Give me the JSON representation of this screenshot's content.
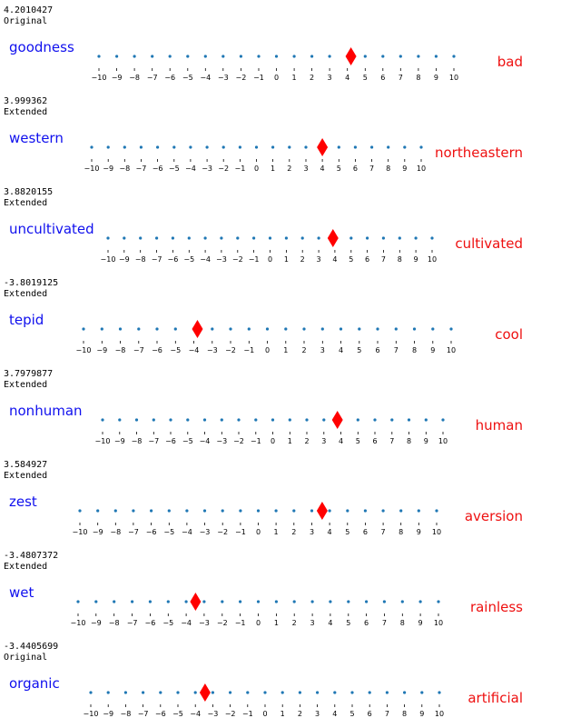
{
  "chart_data": [
    {
      "type": "scatter",
      "value_text": "4.2010427",
      "label": "Original",
      "left_word": "goodness",
      "right_word": "bad",
      "xlim": [
        -10,
        10
      ],
      "value": 4.2010427
    },
    {
      "type": "scatter",
      "value_text": "3.999362",
      "label": "Extended",
      "left_word": "western",
      "right_word": "northeastern",
      "xlim": [
        -10,
        10
      ],
      "value": 3.999362
    },
    {
      "type": "scatter",
      "value_text": "3.8820155",
      "label": "Extended",
      "left_word": "uncultivated",
      "right_word": "cultivated",
      "xlim": [
        -10,
        10
      ],
      "value": 3.8820155
    },
    {
      "type": "scatter",
      "value_text": "-3.8019125",
      "label": "Extended",
      "left_word": "tepid",
      "right_word": "cool",
      "xlim": [
        -10,
        10
      ],
      "value": -3.8019125
    },
    {
      "type": "scatter",
      "value_text": "3.7979877",
      "label": "Extended",
      "left_word": "nonhuman",
      "right_word": "human",
      "xlim": [
        -10,
        10
      ],
      "value": 3.7979877
    },
    {
      "type": "scatter",
      "value_text": "3.584927",
      "label": "Extended",
      "left_word": "zest",
      "right_word": "aversion",
      "xlim": [
        -10,
        10
      ],
      "value": 3.584927
    },
    {
      "type": "scatter",
      "value_text": "-3.4807372",
      "label": "Extended",
      "left_word": "wet",
      "right_word": "rainless",
      "xlim": [
        -10,
        10
      ],
      "value": -3.4807372
    },
    {
      "type": "scatter",
      "value_text": "-3.4405699",
      "label": "Original",
      "left_word": "organic",
      "right_word": "artificial",
      "xlim": [
        -10,
        10
      ],
      "value": -3.4405699
    }
  ],
  "tick_labels": [
    "−10",
    "−9",
    "−8",
    "−7",
    "−6",
    "−5",
    "−4",
    "−3",
    "−2",
    "−1",
    "0",
    "1",
    "2",
    "3",
    "4",
    "5",
    "6",
    "7",
    "8",
    "9",
    "10"
  ],
  "colors": {
    "left_word": "#1010ee",
    "right_word": "#ee1010",
    "dot": "#1f77b4",
    "marker": "#ff0000",
    "text": "#000000"
  }
}
